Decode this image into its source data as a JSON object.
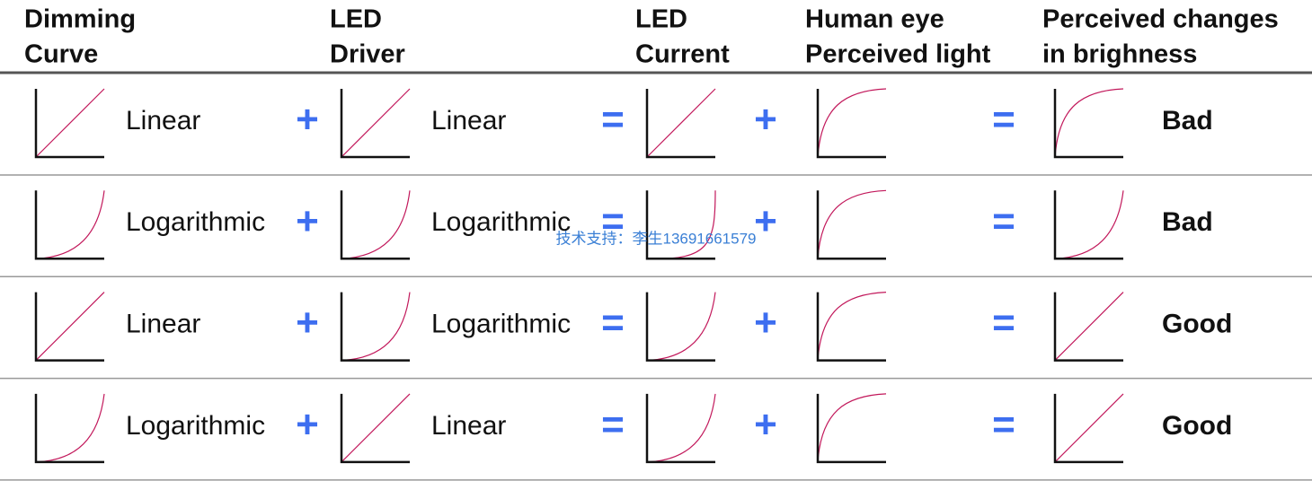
{
  "headers": [
    [
      "Dimming",
      "Curve"
    ],
    [
      "LED",
      "Driver"
    ],
    [
      "LED",
      "Current"
    ],
    [
      "Human eye",
      "Perceived light"
    ],
    [
      "Perceived changes",
      "in brighness"
    ]
  ],
  "rows": [
    {
      "curve": "Linear",
      "op1": "+",
      "driver": "Linear",
      "op2": "=",
      "op3": "+",
      "op4": "=",
      "result": "Bad"
    },
    {
      "curve": "Logarithmic",
      "op1": "+",
      "driver": "Logarithmic",
      "op2": "=",
      "op3": "+",
      "op4": "=",
      "result": "Bad"
    },
    {
      "curve": "Linear",
      "op1": "+",
      "driver": "Logarithmic",
      "op2": "=",
      "op3": "+",
      "op4": "=",
      "result": "Good"
    },
    {
      "curve": "Logarithmic",
      "op1": "+",
      "driver": "Linear",
      "op2": "=",
      "op3": "+",
      "op4": "=",
      "result": "Good"
    }
  ],
  "watermark": "技术支持：李生13691661579"
}
